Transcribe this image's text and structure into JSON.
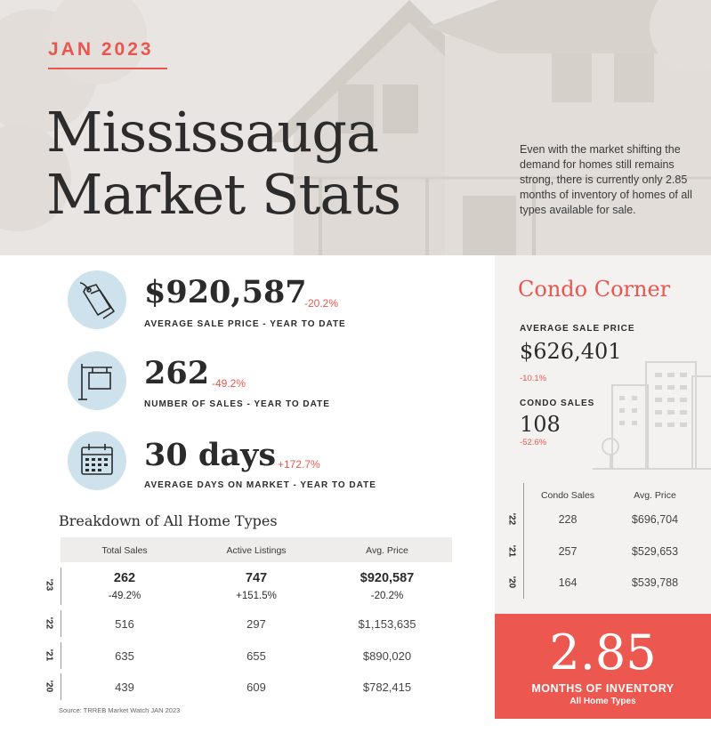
{
  "header": {
    "date": "JAN 2023",
    "title_line1": "Mississauga",
    "title_line2": "Market Stats",
    "intro": "Even with the market shifting the demand for homes still remains strong, there is currently only 2.85 months of inventory of homes of all types available for sale."
  },
  "stats": [
    {
      "icon": "price-tags-icon",
      "value": "$920,587",
      "change": "-20.2%",
      "caption": "AVERAGE SALE PRICE - YEAR TO DATE"
    },
    {
      "icon": "for-sale-sign-icon",
      "value": "262",
      "change": "-49.2%",
      "caption": "NUMBER OF SALES - YEAR TO DATE"
    },
    {
      "icon": "calendar-icon",
      "value": "30 days",
      "change": "+172.7%",
      "caption": "AVERAGE DAYS ON MARKET - YEAR TO DATE"
    }
  ],
  "breakdown": {
    "title": "Breakdown of All Home Types",
    "columns": [
      "Total Sales",
      "Active Listings",
      "Avg. Price"
    ],
    "current": {
      "year": "'23",
      "values": [
        "262",
        "747",
        "$920,587"
      ],
      "changes": [
        "-49.2%",
        "+151.5%",
        "-20.2%"
      ]
    },
    "rows": [
      {
        "year": "'22",
        "values": [
          "516",
          "297",
          "$1,153,635"
        ]
      },
      {
        "year": "'21",
        "values": [
          "635",
          "655",
          "$890,020"
        ]
      },
      {
        "year": "'20",
        "values": [
          "439",
          "609",
          "$782,415"
        ]
      }
    ],
    "source": "Source: TRREB Market Watch JAN 2023"
  },
  "condo": {
    "title": "Condo Corner",
    "avg_price_label": "AVERAGE SALE PRICE",
    "avg_price_value": "$626,401",
    "avg_price_change": "-10.1%",
    "sales_label": "CONDO SALES",
    "sales_value": "108",
    "sales_change": "-52.6%",
    "columns": [
      "Condo Sales",
      "Avg. Price"
    ],
    "rows": [
      {
        "year": "'22",
        "values": [
          "228",
          "$696,704"
        ]
      },
      {
        "year": "'21",
        "values": [
          "257",
          "$529,653"
        ]
      },
      {
        "year": "'20",
        "values": [
          "164",
          "$539,788"
        ]
      }
    ]
  },
  "inventory": {
    "value": "2.85",
    "label": "MONTHS OF INVENTORY",
    "sublabel": "All Home Types"
  },
  "colors": {
    "accent": "#e8574f",
    "icon_circle": "#cde2ec",
    "hero_bg": "#e9e5e2",
    "panel_bg": "#f3f2f1"
  }
}
